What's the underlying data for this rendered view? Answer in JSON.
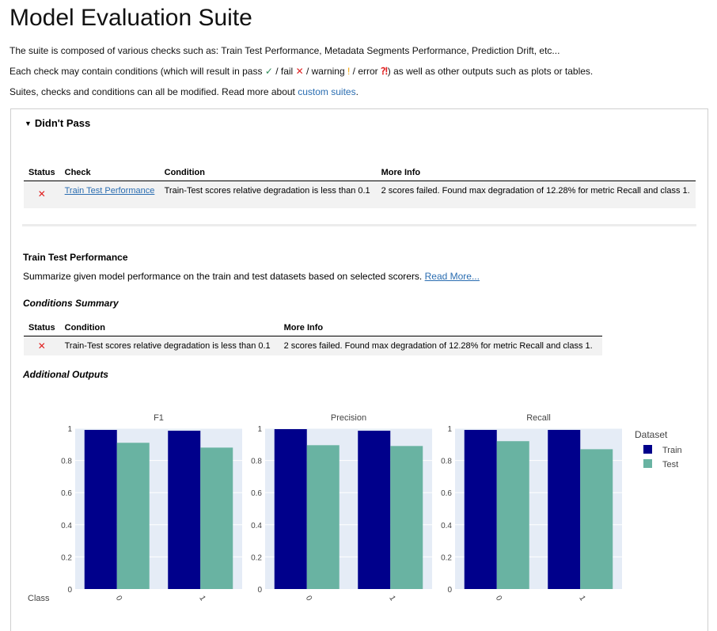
{
  "page": {
    "title": "Model Evaluation Suite",
    "intro1": "The suite is composed of various checks such as: Train Test Performance, Metadata Segments Performance, Prediction Drift, etc...",
    "intro2_a": "Each check may contain conditions (which will result in pass ",
    "intro2_pass": "✓",
    "intro2_b": " / fail ",
    "intro2_fail": "✕",
    "intro2_c": " / warning ",
    "intro2_warn": "!",
    "intro2_d": " / error ",
    "intro2_err": "⁈",
    "intro2_e": ") as well as other outputs such as plots or tables.",
    "intro3_a": "Suites, checks and conditions can all be modified. Read more about ",
    "intro3_link": "custom suites",
    "intro3_b": "."
  },
  "didnt_pass": {
    "summary": "Didn't Pass",
    "headers": {
      "status": "Status",
      "check": "Check",
      "condition": "Condition",
      "more_info": "More Info"
    },
    "rows": [
      {
        "status_icon": "✕",
        "check": "Train Test Performance",
        "condition": "Train-Test scores relative degradation is less than 0.1",
        "more_info": "2 scores failed. Found max degradation of 12.28% for metric Recall and class 1."
      }
    ]
  },
  "section": {
    "title": "Train Test Performance",
    "description": "Summarize given model performance on the train and test datasets based on selected scorers. ",
    "read_more": "Read More...",
    "conditions_summary_title": "Conditions Summary",
    "conditions_headers": {
      "status": "Status",
      "condition": "Condition",
      "more_info": "More Info"
    },
    "conditions_rows": [
      {
        "status_icon": "✕",
        "condition": "Train-Test scores relative degradation is less than 0.1",
        "more_info": "2 scores failed. Found max degradation of 12.28% for metric Recall and class 1."
      }
    ],
    "additional_outputs_title": "Additional Outputs"
  },
  "chart_data": {
    "type": "bar",
    "subplots": [
      {
        "title": "F1",
        "categories": [
          "0",
          "1"
        ],
        "series": [
          {
            "name": "Train",
            "values": [
              0.99,
              0.985
            ]
          },
          {
            "name": "Test",
            "values": [
              0.91,
              0.88
            ]
          }
        ]
      },
      {
        "title": "Precision",
        "categories": [
          "0",
          "1"
        ],
        "series": [
          {
            "name": "Train",
            "values": [
              0.995,
              0.985
            ]
          },
          {
            "name": "Test",
            "values": [
              0.895,
              0.89
            ]
          }
        ]
      },
      {
        "title": "Recall",
        "categories": [
          "0",
          "1"
        ],
        "series": [
          {
            "name": "Train",
            "values": [
              0.99,
              0.99
            ]
          },
          {
            "name": "Test",
            "values": [
              0.92,
              0.87
            ]
          }
        ]
      }
    ],
    "xlabel": "Class",
    "ylim": [
      0,
      1
    ],
    "yticks": [
      "0",
      "0.2",
      "0.4",
      "0.6",
      "0.8",
      "1"
    ],
    "legend_title": "Dataset",
    "legend_position": "right",
    "grid": true,
    "colors": {
      "Train": "#00008b",
      "Test": "#69b3a2",
      "plot_bg": "#e5ecf6"
    }
  }
}
